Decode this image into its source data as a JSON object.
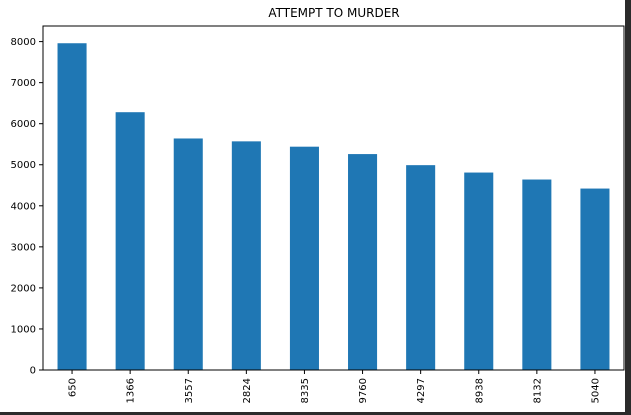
{
  "chart_data": {
    "type": "bar",
    "title": "ATTEMPT TO MURDER",
    "xlabel": "",
    "ylabel": "",
    "categories": [
      "650",
      "1366",
      "3557",
      "2824",
      "8335",
      "9760",
      "4297",
      "8938",
      "8132",
      "5040"
    ],
    "values": [
      7960,
      6280,
      5640,
      5570,
      5440,
      5260,
      4990,
      4810,
      4640,
      4420
    ],
    "ylim": [
      0,
      8380
    ],
    "yticks": [
      0,
      1000,
      2000,
      3000,
      4000,
      5000,
      6000,
      7000,
      8000
    ],
    "bar_color": "#1f77b4",
    "grid": false,
    "legend": "none"
  },
  "colors": {
    "figure_background": "#ffffff",
    "page_background": "#2b2b2b",
    "axes_edge": "#000000"
  }
}
